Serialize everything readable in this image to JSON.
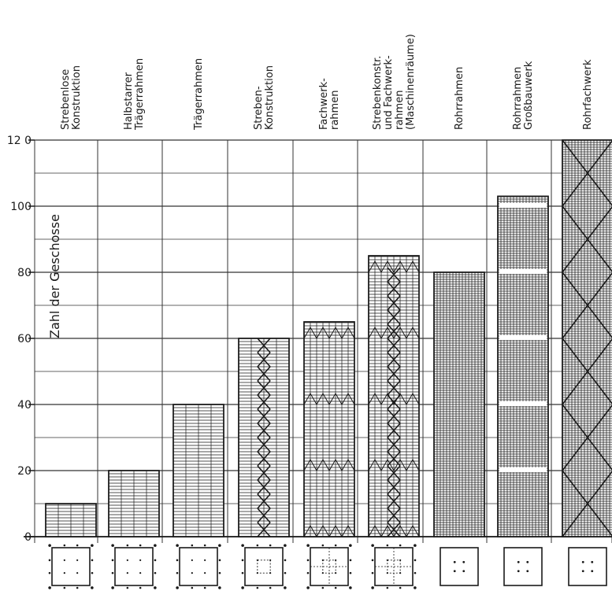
{
  "chart_data": {
    "type": "bar",
    "title": "",
    "xlabel": "",
    "ylabel": "Zahl der Geschosse",
    "ylim": [
      0,
      120
    ],
    "yticks": [
      0,
      20,
      40,
      60,
      80,
      100,
      120
    ],
    "yticks_text": [
      "0",
      "20",
      "40",
      "60",
      "80",
      "100",
      "12 0"
    ],
    "grid": true,
    "legend": "none",
    "categories": [
      [
        "Strebenlose",
        "Konstruktion"
      ],
      [
        "Halbstarrer",
        "Trägerrahmen"
      ],
      [
        "Trägerrahmen"
      ],
      [
        "Streben-",
        "Konstruktion"
      ],
      [
        "Fachwerk-",
        "rahmen"
      ],
      [
        "Strebenkonstr.",
        "und Fachwerk-",
        "rahmen",
        "(Maschinenräume)"
      ],
      [
        "Rohrrahmen"
      ],
      [
        "Rohrrahmen",
        "Großbauwerk"
      ],
      [
        "Rohrfachwerk"
      ]
    ],
    "values": [
      10,
      20,
      40,
      60,
      65,
      85,
      80,
      103,
      120
    ],
    "structure_styles": [
      "grid",
      "grid",
      "grid",
      "braced",
      "truss",
      "braced-truss",
      "tube",
      "tube-belts",
      "tube-truss"
    ],
    "plan_styles": [
      "corner-columns",
      "corner-columns",
      "corner-columns",
      "core",
      "dashed-core",
      "dashed-core",
      "tube",
      "tube",
      "tube"
    ],
    "colors": {
      "ink": "#1a1a1a",
      "grid": "#333333",
      "background": "#ffffff"
    }
  }
}
